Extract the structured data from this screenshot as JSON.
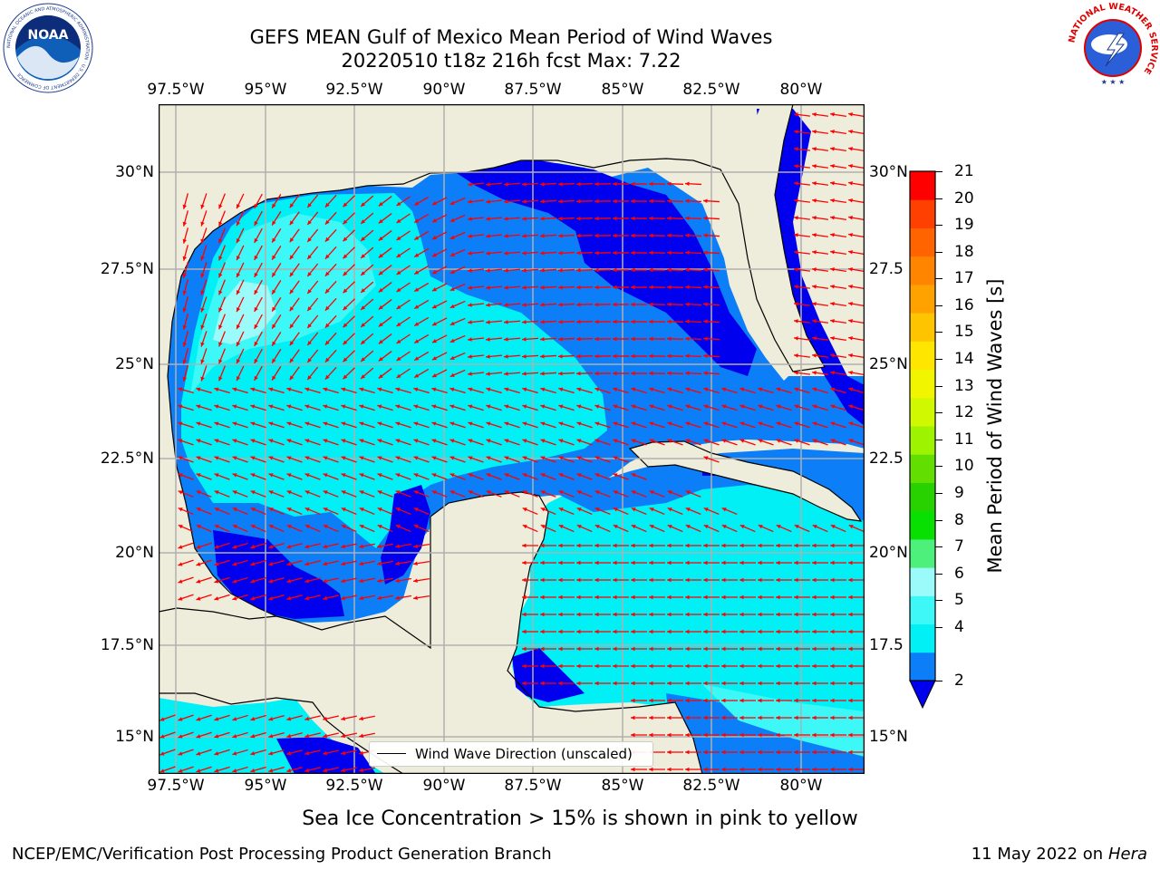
{
  "title": {
    "line1": "GEFS MEAN Gulf of Mexico Mean Period of Wind Waves",
    "line2": "20220510 t18z 216h fcst   Max: 7.22"
  },
  "axes": {
    "lon_labels": [
      "97.5°W",
      "95°W",
      "92.5°W",
      "90°W",
      "87.5°W",
      "85°W",
      "82.5°W",
      "80°W"
    ],
    "lat_labels_left": [
      "30°N",
      "27.5°N",
      "25°N",
      "22.5°N",
      "20°N",
      "17.5°N",
      "15°N"
    ],
    "lat_labels_right": [
      "30°N",
      "27.5",
      "25°N",
      "22.5",
      "20°N",
      "17.5",
      "15°N"
    ]
  },
  "legend": {
    "label": "Wind Wave Direction (unscaled)"
  },
  "colorbar": {
    "label": "Mean Period of Wind Waves [s]",
    "ticks": [
      "21",
      "20",
      "19",
      "18",
      "17",
      "16",
      "15",
      "14",
      "13",
      "12",
      "11",
      "10",
      "9",
      "8",
      "7",
      "6",
      "5",
      "4",
      "2"
    ],
    "levels": [
      2,
      3,
      4,
      5,
      6,
      7,
      8,
      9,
      10,
      11,
      12,
      13,
      14,
      15,
      16,
      17,
      18,
      19,
      20,
      21
    ],
    "colors": [
      "#0b7ef8",
      "#00f0f5",
      "#3ef7f7",
      "#9bfbfb",
      "#4cf07a",
      "#07e000",
      "#27d200",
      "#62df00",
      "#9ef400",
      "#d0f800",
      "#f2f500",
      "#ffe600",
      "#ffc400",
      "#ffa200",
      "#ff8500",
      "#ff6400",
      "#ff4000",
      "#ff0000"
    ],
    "under_color": "#0000ee"
  },
  "colors": {
    "land": "#eeeddb",
    "arrow": "#ff0000",
    "period_lt3": "#0000ee",
    "period_3_4": "#0b7ef8",
    "period_4_5": "#00f0f5",
    "period_5_6": "#3ef7f7",
    "period_6_7": "#9bfbfb"
  },
  "notice": "Sea Ice Concentration > 15% is shown in pink to yellow",
  "footer": {
    "left": "NCEP/EMC/Verification Post Processing Product Generation Branch",
    "date": "11 May 2022 on",
    "host": "Hera"
  },
  "logos": {
    "noaa": "NOAA",
    "noaa_ring": "NATIONAL OCEANIC AND ATMOSPHERIC ADMINISTRATION · U.S. DEPARTMENT OF COMMERCE",
    "nws_ring": "NATIONAL WEATHER SERVICE"
  }
}
